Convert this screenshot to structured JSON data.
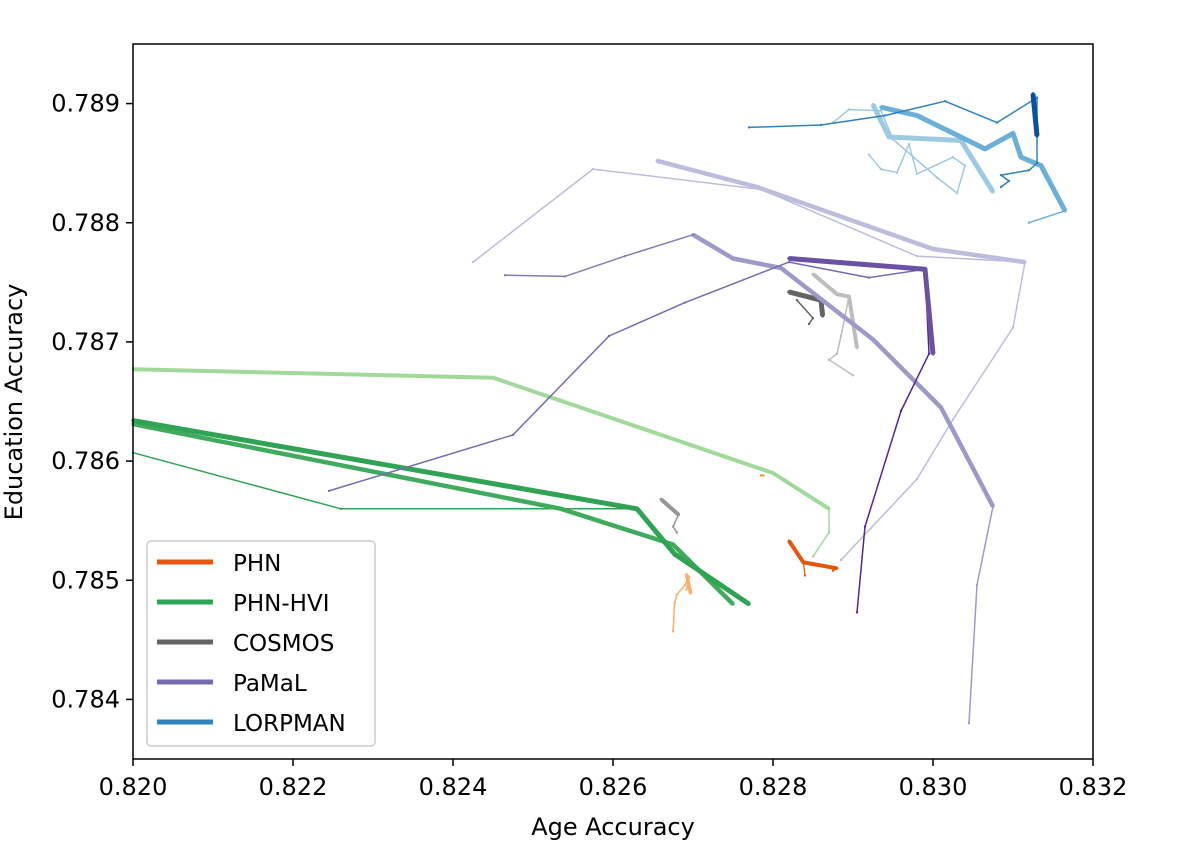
{
  "chart_data": {
    "type": "line",
    "title": "",
    "xlabel": "Age Accuracy",
    "ylabel": "Education Accuracy",
    "xlim": [
      0.82,
      0.832
    ],
    "ylim": [
      0.7835,
      0.7895
    ],
    "xticks": [
      "0.820",
      "0.822",
      "0.824",
      "0.826",
      "0.828",
      "0.830",
      "0.832"
    ],
    "yticks": [
      "0.784",
      "0.785",
      "0.786",
      "0.787",
      "0.788",
      "0.789"
    ],
    "grid": false,
    "legend_position": "lower-left",
    "legend": [
      {
        "name": "PHN",
        "color": "#e6550d"
      },
      {
        "name": "PHN-HVI",
        "color": "#31a354"
      },
      {
        "name": "COSMOS",
        "color": "#636363"
      },
      {
        "name": "PaMaL",
        "color": "#756bb1"
      },
      {
        "name": "LORPMAN",
        "color": "#3182bd"
      }
    ],
    "series": [
      {
        "name": "PHN",
        "color": "#fdae6b",
        "width": 1.5,
        "points": [
          [
            0.82675,
            0.78457
          ],
          [
            0.82677,
            0.78481
          ],
          [
            0.8268,
            0.78488
          ],
          [
            0.8269,
            0.78496
          ],
          [
            0.82695,
            0.78503
          ],
          [
            0.82692,
            0.78492
          ]
        ]
      },
      {
        "name": "PHN",
        "color": "#fdae6b",
        "width": 3.5,
        "points": [
          [
            0.82692,
            0.78505
          ],
          [
            0.82697,
            0.78489
          ]
        ]
      },
      {
        "name": "PHN",
        "color": "#fd8d3c",
        "width": 1.5,
        "points": [
          [
            0.82785,
            0.78588
          ],
          [
            0.82788,
            0.78588
          ]
        ]
      },
      {
        "name": "PHN",
        "color": "#e6550d",
        "width": 1.2,
        "points": [
          [
            0.8284,
            0.78504
          ],
          [
            0.82838,
            0.78515
          ]
        ]
      },
      {
        "name": "PHN",
        "color": "#e6550d",
        "width": 4,
        "points": [
          [
            0.8282,
            0.78533
          ],
          [
            0.82838,
            0.78515
          ],
          [
            0.8288,
            0.7851
          ]
        ]
      },
      {
        "name": "PHN",
        "color": "#e6550d",
        "width": 1.2,
        "points": [
          [
            0.8288,
            0.7851
          ],
          [
            0.82875,
            0.78508
          ]
        ]
      },
      {
        "name": "PHN-HVI",
        "color": "#31a354",
        "width": 1.5,
        "points": [
          [
            0.82,
            0.78607
          ],
          [
            0.8226,
            0.7856
          ],
          [
            0.82625,
            0.7856
          ]
        ]
      },
      {
        "name": "PHN-HVI",
        "color": "#41ab5d",
        "width": 4.5,
        "points": [
          [
            0.82,
            0.78631
          ],
          [
            0.82535,
            0.7856
          ],
          [
            0.82675,
            0.7853
          ],
          [
            0.8275,
            0.7848
          ]
        ]
      },
      {
        "name": "PHN-HVI",
        "color": "#31a354",
        "width": 5,
        "points": [
          [
            0.82,
            0.78634
          ],
          [
            0.8263,
            0.7856
          ],
          [
            0.82677,
            0.78522
          ],
          [
            0.8277,
            0.7848
          ]
        ]
      },
      {
        "name": "PHN-HVI",
        "color": "#a1d99b",
        "width": 4,
        "points": [
          [
            0.82,
            0.78677
          ],
          [
            0.8245,
            0.7867
          ],
          [
            0.828,
            0.7859
          ],
          [
            0.8287,
            0.7856
          ]
        ]
      },
      {
        "name": "PHN-HVI",
        "color": "#a1d99b",
        "width": 1.5,
        "points": [
          [
            0.8287,
            0.7856
          ],
          [
            0.8287,
            0.7854
          ],
          [
            0.8285,
            0.7852
          ]
        ]
      },
      {
        "name": "COSMOS",
        "color": "#969696",
        "width": 4,
        "points": [
          [
            0.8266,
            0.78568
          ],
          [
            0.82682,
            0.78555
          ]
        ]
      },
      {
        "name": "COSMOS",
        "color": "#969696",
        "width": 1.5,
        "points": [
          [
            0.82682,
            0.78555
          ],
          [
            0.82675,
            0.78545
          ],
          [
            0.8268,
            0.7854
          ]
        ]
      },
      {
        "name": "COSMOS",
        "color": "#636363",
        "width": 5,
        "points": [
          [
            0.8282,
            0.78742
          ],
          [
            0.8286,
            0.78735
          ],
          [
            0.82862,
            0.78722
          ]
        ]
      },
      {
        "name": "COSMOS",
        "color": "#636363",
        "width": 1.5,
        "points": [
          [
            0.8283,
            0.78735
          ],
          [
            0.8285,
            0.7872
          ],
          [
            0.82845,
            0.78715
          ]
        ]
      },
      {
        "name": "COSMOS",
        "color": "#bdbdbd",
        "width": 4,
        "points": [
          [
            0.8285,
            0.78757
          ],
          [
            0.8288,
            0.7874
          ],
          [
            0.82895,
            0.78738
          ],
          [
            0.82905,
            0.78695
          ]
        ]
      },
      {
        "name": "COSMOS",
        "color": "#bdbdbd",
        "width": 1.5,
        "points": [
          [
            0.82895,
            0.78738
          ],
          [
            0.82885,
            0.78705
          ],
          [
            0.8288,
            0.7869
          ],
          [
            0.8287,
            0.78685
          ],
          [
            0.829,
            0.78672
          ]
        ]
      },
      {
        "name": "PaMaL",
        "color": "#bcbddc",
        "width": 4.5,
        "points": [
          [
            0.82655,
            0.78852
          ],
          [
            0.8278,
            0.7883
          ],
          [
            0.83,
            0.78778
          ],
          [
            0.83115,
            0.78767
          ]
        ]
      },
      {
        "name": "PaMaL",
        "color": "#bcbddc",
        "width": 1.5,
        "points": [
          [
            0.82425,
            0.78767
          ],
          [
            0.82575,
            0.78845
          ],
          [
            0.82785,
            0.78828
          ],
          [
            0.8298,
            0.78772
          ],
          [
            0.83115,
            0.78767
          ],
          [
            0.831,
            0.78712
          ],
          [
            0.83025,
            0.78635
          ],
          [
            0.8298,
            0.78585
          ],
          [
            0.82885,
            0.78517
          ]
        ]
      },
      {
        "name": "PaMaL",
        "color": "#9e9ac8",
        "width": 4.5,
        "points": [
          [
            0.827,
            0.7879
          ],
          [
            0.8275,
            0.7877
          ],
          [
            0.8281,
            0.78762
          ],
          [
            0.82925,
            0.78702
          ],
          [
            0.8301,
            0.78645
          ],
          [
            0.83075,
            0.78562
          ]
        ]
      },
      {
        "name": "PaMaL",
        "color": "#9e9ac8",
        "width": 1.5,
        "points": [
          [
            0.83075,
            0.78562
          ],
          [
            0.83055,
            0.78496
          ],
          [
            0.83045,
            0.7838
          ]
        ]
      },
      {
        "name": "PaMaL",
        "color": "#807dba",
        "width": 1.5,
        "points": [
          [
            0.82465,
            0.78756
          ],
          [
            0.8254,
            0.78755
          ],
          [
            0.82615,
            0.78772
          ],
          [
            0.827,
            0.7879
          ]
        ]
      },
      {
        "name": "PaMaL",
        "color": "#756bb1",
        "width": 1.5,
        "points": [
          [
            0.82245,
            0.78575
          ],
          [
            0.82475,
            0.78622
          ],
          [
            0.82595,
            0.78705
          ],
          [
            0.8269,
            0.78733
          ],
          [
            0.8282,
            0.78767
          ],
          [
            0.8292,
            0.78754
          ],
          [
            0.8299,
            0.78761
          ]
        ]
      },
      {
        "name": "PaMaL",
        "color": "#54278f",
        "width": 1.5,
        "points": [
          [
            0.8299,
            0.78761
          ],
          [
            0.82995,
            0.7869
          ],
          [
            0.8296,
            0.78642
          ],
          [
            0.82915,
            0.78545
          ],
          [
            0.82905,
            0.78473
          ]
        ]
      },
      {
        "name": "PaMaL",
        "color": "#6a51a3",
        "width": 5,
        "points": [
          [
            0.8282,
            0.7877
          ],
          [
            0.8299,
            0.78761
          ],
          [
            0.83,
            0.7869
          ]
        ]
      },
      {
        "name": "LORPMAN",
        "color": "#9ecae1",
        "width": 5,
        "points": [
          [
            0.82925,
            0.78899
          ],
          [
            0.82945,
            0.78872
          ],
          [
            0.83035,
            0.78869
          ],
          [
            0.83075,
            0.78826
          ]
        ]
      },
      {
        "name": "LORPMAN",
        "color": "#9ecae1",
        "width": 1.5,
        "points": [
          [
            0.82875,
            0.78884
          ],
          [
            0.82895,
            0.78895
          ],
          [
            0.82935,
            0.78894
          ],
          [
            0.8295,
            0.7887
          ],
          [
            0.83005,
            0.78838
          ],
          [
            0.8303,
            0.78825
          ],
          [
            0.8304,
            0.78848
          ],
          [
            0.83025,
            0.78855
          ],
          [
            0.8298,
            0.78841
          ],
          [
            0.8297,
            0.78866
          ],
          [
            0.82955,
            0.78842
          ],
          [
            0.82935,
            0.78845
          ],
          [
            0.8292,
            0.78857
          ]
        ]
      },
      {
        "name": "LORPMAN",
        "color": "#6baed6",
        "width": 5,
        "points": [
          [
            0.82935,
            0.78897
          ],
          [
            0.8298,
            0.7889
          ],
          [
            0.83065,
            0.78862
          ],
          [
            0.831,
            0.78875
          ],
          [
            0.8311,
            0.78855
          ],
          [
            0.83135,
            0.78848
          ],
          [
            0.83165,
            0.7881
          ]
        ]
      },
      {
        "name": "LORPMAN",
        "color": "#6baed6",
        "width": 1.5,
        "points": [
          [
            0.83165,
            0.7881
          ],
          [
            0.8312,
            0.788
          ]
        ]
      },
      {
        "name": "LORPMAN",
        "color": "#3182bd",
        "width": 1.5,
        "points": [
          [
            0.8277,
            0.7888
          ],
          [
            0.8286,
            0.78882
          ],
          [
            0.8294,
            0.7889
          ],
          [
            0.83015,
            0.78902
          ],
          [
            0.8308,
            0.78884
          ],
          [
            0.8313,
            0.78905
          ],
          [
            0.8313,
            0.7885
          ],
          [
            0.8312,
            0.78844
          ],
          [
            0.83085,
            0.7884
          ],
          [
            0.83095,
            0.78835
          ],
          [
            0.83085,
            0.7883
          ]
        ]
      },
      {
        "name": "LORPMAN",
        "color": "#08519c",
        "width": 5,
        "points": [
          [
            0.83125,
            0.78908
          ],
          [
            0.8313,
            0.78873
          ]
        ]
      }
    ]
  }
}
